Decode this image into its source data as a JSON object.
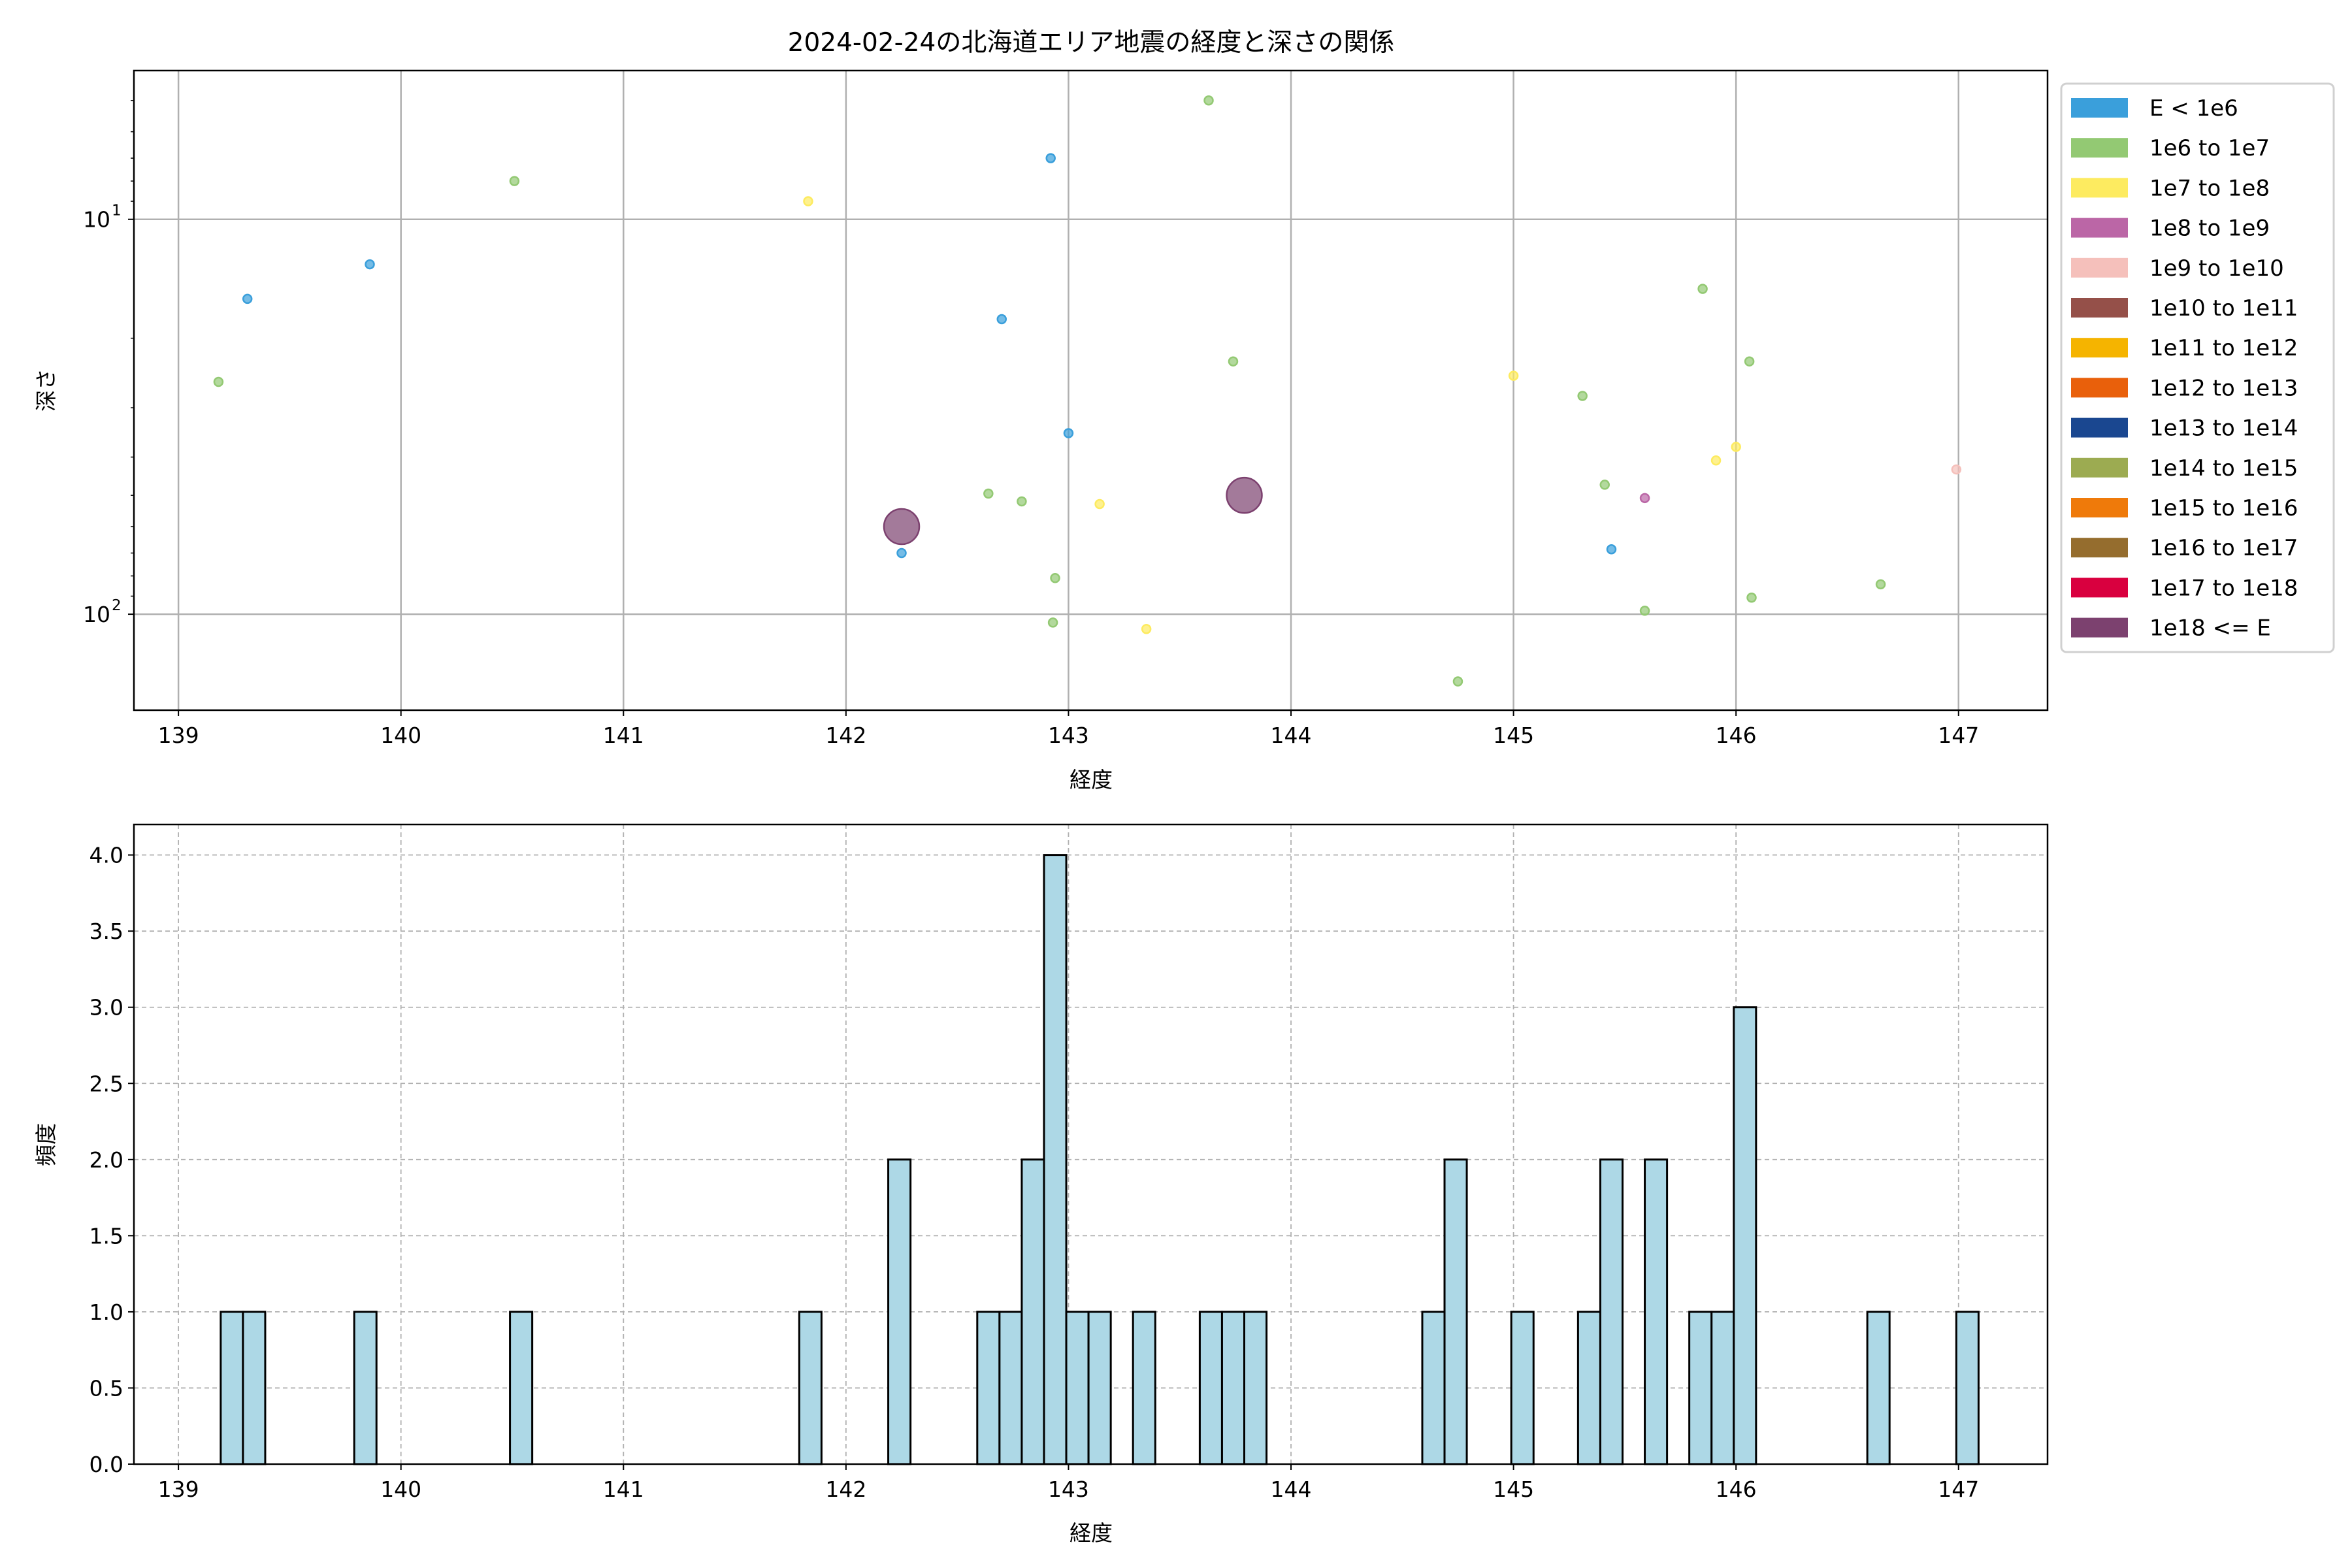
{
  "chart_data": [
    {
      "type": "scatter",
      "title": "2024-02-24の北海道エリア地震の経度と深さの関係",
      "xlabel": "経度",
      "ylabel": "深さ",
      "xlim": [
        138.8,
        147.4
      ],
      "ylim": [
        175,
        4.2
      ],
      "yscale": "log",
      "y_inverted": true,
      "grid": true,
      "x_ticks": [
        "139",
        "140",
        "141",
        "142",
        "143",
        "144",
        "145",
        "146",
        "147"
      ],
      "y_ticks": [
        {
          "value": 10,
          "base": "10",
          "exp": "1"
        },
        {
          "value": 100,
          "base": "10",
          "exp": "2"
        }
      ],
      "legend_position": "outside-right",
      "legend": [
        {
          "label": "E < 1e6",
          "color": "#3a9fdb"
        },
        {
          "label": "1e6 to 1e7",
          "color": "#93c973"
        },
        {
          "label": "1e7 to 1e8",
          "color": "#fdeb60"
        },
        {
          "label": "1e8 to 1e9",
          "color": "#bb66a6"
        },
        {
          "label": "1e9 to 1e10",
          "color": "#f5c0bb"
        },
        {
          "label": "1e10 to 1e11",
          "color": "#955049"
        },
        {
          "label": "1e11 to 1e12",
          "color": "#f5b400"
        },
        {
          "label": "1e12 to 1e13",
          "color": "#e9600b"
        },
        {
          "label": "1e13 to 1e14",
          "color": "#1a4790"
        },
        {
          "label": "1e14 to 1e15",
          "color": "#9cab51"
        },
        {
          "label": "1e15 to 1e16",
          "color": "#ef7a0a"
        },
        {
          "label": "1e16 to 1e17",
          "color": "#956d2e"
        },
        {
          "label": "1e17 to 1e18",
          "color": "#d9003f"
        },
        {
          "label": "1e18 <= E",
          "color": "#7c416f"
        }
      ],
      "points": [
        {
          "lon": 139.31,
          "depth": 15.9,
          "cls": 0
        },
        {
          "lon": 139.86,
          "depth": 13.0,
          "cls": 0
        },
        {
          "lon": 139.18,
          "depth": 25.8,
          "cls": 1
        },
        {
          "lon": 140.51,
          "depth": 8.0,
          "cls": 1
        },
        {
          "lon": 141.83,
          "depth": 9.0,
          "cls": 2
        },
        {
          "lon": 142.92,
          "depth": 7.0,
          "cls": 0
        },
        {
          "lon": 143.63,
          "depth": 5.0,
          "cls": 1
        },
        {
          "lon": 142.7,
          "depth": 17.9,
          "cls": 0
        },
        {
          "lon": 143.0,
          "depth": 34.8,
          "cls": 0
        },
        {
          "lon": 142.25,
          "depth": 60,
          "cls": 13
        },
        {
          "lon": 142.25,
          "depth": 70,
          "cls": 0
        },
        {
          "lon": 142.64,
          "depth": 49.5,
          "cls": 1
        },
        {
          "lon": 142.79,
          "depth": 51.8,
          "cls": 1
        },
        {
          "lon": 143.14,
          "depth": 52.6,
          "cls": 2
        },
        {
          "lon": 143.79,
          "depth": 50,
          "cls": 13
        },
        {
          "lon": 143.74,
          "depth": 22.9,
          "cls": 1
        },
        {
          "lon": 142.94,
          "depth": 81,
          "cls": 1
        },
        {
          "lon": 142.93,
          "depth": 105,
          "cls": 1
        },
        {
          "lon": 143.35,
          "depth": 109,
          "cls": 2
        },
        {
          "lon": 144.75,
          "depth": 148,
          "cls": 1
        },
        {
          "lon": 145.0,
          "depth": 24.9,
          "cls": 2
        },
        {
          "lon": 145.31,
          "depth": 28,
          "cls": 1
        },
        {
          "lon": 145.85,
          "depth": 15,
          "cls": 1
        },
        {
          "lon": 146.06,
          "depth": 22.9,
          "cls": 1
        },
        {
          "lon": 146.0,
          "depth": 37.7,
          "cls": 2
        },
        {
          "lon": 145.91,
          "depth": 40.8,
          "cls": 2
        },
        {
          "lon": 145.41,
          "depth": 47,
          "cls": 1
        },
        {
          "lon": 145.59,
          "depth": 50.8,
          "cls": 3
        },
        {
          "lon": 145.44,
          "depth": 68.5,
          "cls": 0
        },
        {
          "lon": 145.59,
          "depth": 98,
          "cls": 1
        },
        {
          "lon": 146.07,
          "depth": 90.8,
          "cls": 1
        },
        {
          "lon": 146.65,
          "depth": 84,
          "cls": 1
        },
        {
          "lon": 146.99,
          "depth": 43,
          "cls": 4
        }
      ]
    },
    {
      "type": "bar",
      "subtype": "histogram",
      "xlabel": "経度",
      "ylabel": "頻度",
      "xlim": [
        138.8,
        147.4
      ],
      "ylim": [
        0,
        4.2
      ],
      "grid": true,
      "bar_color": "#add8e6",
      "edge_color": "#000000",
      "x_ticks": [
        "139",
        "140",
        "141",
        "142",
        "143",
        "144",
        "145",
        "146",
        "147"
      ],
      "y_ticks": [
        "0.0",
        "0.5",
        "1.0",
        "1.5",
        "2.0",
        "2.5",
        "3.0",
        "3.5",
        "4.0"
      ],
      "bins": [
        {
          "x0": 139.19,
          "x1": 139.29,
          "count": 1
        },
        {
          "x0": 139.29,
          "x1": 139.39,
          "count": 1
        },
        {
          "x0": 139.79,
          "x1": 139.89,
          "count": 1
        },
        {
          "x0": 140.49,
          "x1": 140.59,
          "count": 1
        },
        {
          "x0": 141.79,
          "x1": 141.89,
          "count": 1
        },
        {
          "x0": 142.19,
          "x1": 142.29,
          "count": 2
        },
        {
          "x0": 142.59,
          "x1": 142.69,
          "count": 1
        },
        {
          "x0": 142.69,
          "x1": 142.79,
          "count": 1
        },
        {
          "x0": 142.79,
          "x1": 142.89,
          "count": 2
        },
        {
          "x0": 142.89,
          "x1": 142.99,
          "count": 4
        },
        {
          "x0": 142.99,
          "x1": 143.09,
          "count": 1
        },
        {
          "x0": 143.09,
          "x1": 143.19,
          "count": 1
        },
        {
          "x0": 143.29,
          "x1": 143.39,
          "count": 1
        },
        {
          "x0": 143.59,
          "x1": 143.69,
          "count": 1
        },
        {
          "x0": 143.69,
          "x1": 143.79,
          "count": 1
        },
        {
          "x0": 143.79,
          "x1": 143.89,
          "count": 1
        },
        {
          "x0": 144.59,
          "x1": 144.69,
          "count": 1
        },
        {
          "x0": 144.69,
          "x1": 144.79,
          "count": 2
        },
        {
          "x0": 144.99,
          "x1": 145.09,
          "count": 1
        },
        {
          "x0": 145.29,
          "x1": 145.39,
          "count": 1
        },
        {
          "x0": 145.39,
          "x1": 145.49,
          "count": 2
        },
        {
          "x0": 145.59,
          "x1": 145.69,
          "count": 2
        },
        {
          "x0": 145.79,
          "x1": 145.89,
          "count": 1
        },
        {
          "x0": 145.89,
          "x1": 145.99,
          "count": 1
        },
        {
          "x0": 145.99,
          "x1": 146.09,
          "count": 3
        },
        {
          "x0": 146.59,
          "x1": 146.69,
          "count": 1
        },
        {
          "x0": 146.99,
          "x1": 147.09,
          "count": 1
        }
      ]
    }
  ]
}
